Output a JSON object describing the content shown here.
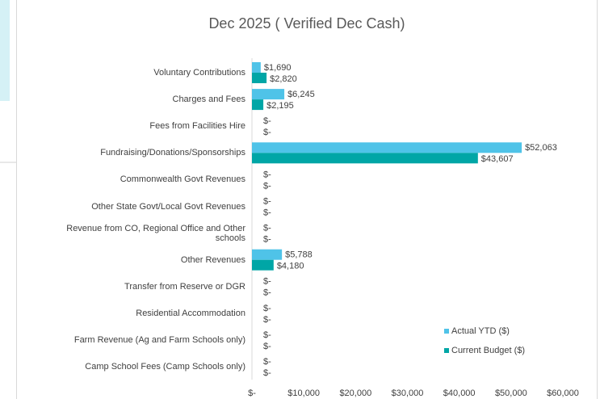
{
  "chart_data": {
    "type": "bar",
    "orientation": "horizontal",
    "title": "Dec 2025 ( Verified Dec Cash)",
    "categories": [
      "Voluntary Contributions",
      "Charges and Fees",
      "Fees from Facilities Hire",
      "Fundraising/Donations/Sponsorships",
      "Commonwealth Govt Revenues",
      "Other State Govt/Local Govt Revenues",
      "Revenue from CO, Regional Office and Other schools",
      "Other Revenues",
      "Transfer from Reserve or DGR",
      "Residential Accommodation",
      "Farm Revenue (Ag and Farm Schools only)",
      "Camp School Fees (Camp Schools only)"
    ],
    "series": [
      {
        "name": "Actual YTD ($)",
        "color": "#4fc3e8",
        "values": [
          1690,
          6245,
          0,
          52063,
          0,
          0,
          0,
          5788,
          0,
          0,
          0,
          0
        ],
        "value_labels": [
          "$1,690",
          "$6,245",
          "$-",
          "$52,063",
          "$-",
          "$-",
          "$-",
          "$5,788",
          "$-",
          "$-",
          "$-",
          "$-"
        ]
      },
      {
        "name": "Current Budget ($)",
        "color": "#00a6a6",
        "values": [
          2820,
          2195,
          0,
          43607,
          0,
          0,
          0,
          4180,
          0,
          0,
          0,
          0
        ],
        "value_labels": [
          "$2,820",
          "$2,195",
          "$-",
          "$43,607",
          "$-",
          "$-",
          "$-",
          "$4,180",
          "$-",
          "$-",
          "$-",
          "$-"
        ]
      }
    ],
    "xlim": [
      0,
      60000
    ],
    "xticks": [
      {
        "value": 0,
        "label": "$-"
      },
      {
        "value": 10000,
        "label": "$10,000"
      },
      {
        "value": 20000,
        "label": "$20,000"
      },
      {
        "value": 30000,
        "label": "$30,000"
      },
      {
        "value": 40000,
        "label": "$40,000"
      },
      {
        "value": 50000,
        "label": "$50,000"
      },
      {
        "value": 60000,
        "label": "$60,000"
      }
    ],
    "grid": false,
    "legend": "lower right"
  }
}
